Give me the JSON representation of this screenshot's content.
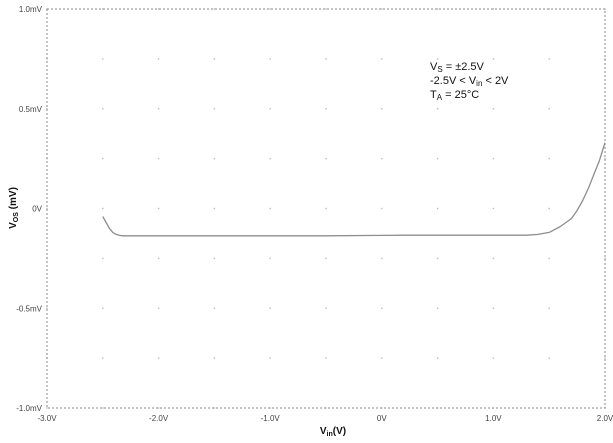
{
  "chart_data": {
    "type": "line",
    "title": "",
    "xlabel": {
      "main": "V",
      "sub": "in",
      "unit": "(V)"
    },
    "ylabel": {
      "main": "V",
      "sub": "OS",
      "unit": " (mV)"
    },
    "xlim": [
      -3.0,
      2.0
    ],
    "ylim": [
      -1.0,
      1.0
    ],
    "x_ticks": [
      -3.0,
      -2.0,
      -1.0,
      0,
      1.0,
      2.0
    ],
    "x_tick_labels": [
      "-3.0V",
      "-2.0V",
      "-1.0V",
      "0V",
      "1.0V",
      "2.0V"
    ],
    "y_ticks": [
      1.0,
      0.5,
      0,
      -0.5,
      -1.0
    ],
    "y_tick_labels": [
      "1.0mV",
      "0.5mV",
      "0V",
      "-0.5mV",
      "-1.0mV"
    ],
    "grid": true,
    "annotations": [
      {
        "parts": [
          [
            "V",
            ""
          ],
          [
            "S",
            "sub"
          ],
          [
            " = ±2.5V",
            ""
          ]
        ]
      },
      {
        "parts": [
          [
            "-2.5V < V",
            ""
          ],
          [
            "in",
            "sub"
          ],
          [
            " < 2V",
            ""
          ]
        ]
      },
      {
        "parts": [
          [
            "T",
            ""
          ],
          [
            "A",
            "sub"
          ],
          [
            " = 25°C",
            ""
          ]
        ]
      }
    ],
    "series": [
      {
        "color": "#8e8e8e",
        "x": [
          -2.5,
          -2.47,
          -2.44,
          -2.41,
          -2.38,
          -2.35,
          -2.32,
          -2.3,
          -2.2,
          -2.0,
          -1.5,
          -1.0,
          -0.5,
          0.0,
          0.2,
          0.5,
          1.0,
          1.3,
          1.4,
          1.5,
          1.6,
          1.7,
          1.75,
          1.8,
          1.85,
          1.9,
          1.95,
          2.0
        ],
        "y": [
          -0.04,
          -0.07,
          -0.1,
          -0.12,
          -0.13,
          -0.135,
          -0.137,
          -0.137,
          -0.137,
          -0.137,
          -0.137,
          -0.137,
          -0.137,
          -0.135,
          -0.134,
          -0.134,
          -0.134,
          -0.134,
          -0.13,
          -0.12,
          -0.09,
          -0.05,
          -0.01,
          0.04,
          0.1,
          0.17,
          0.24,
          0.33
        ]
      }
    ]
  }
}
